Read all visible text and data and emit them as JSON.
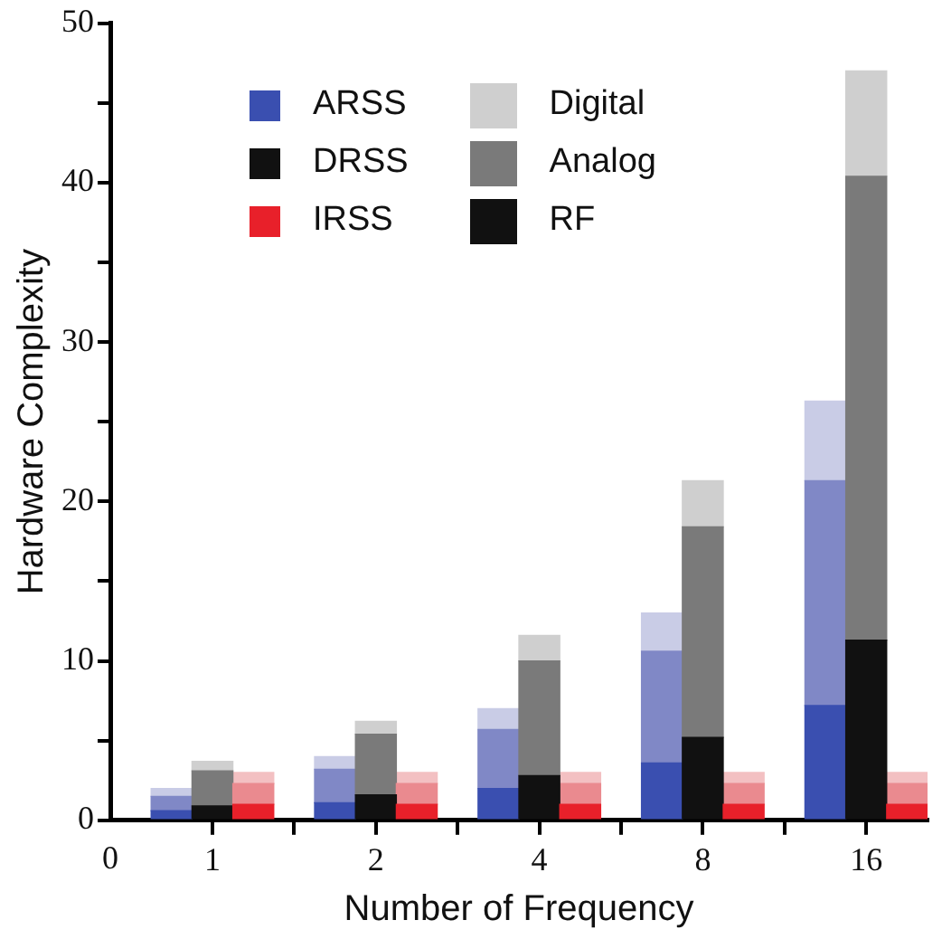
{
  "chart_data": {
    "type": "bar",
    "xlabel": "Number of Frequency",
    "ylabel": "Hardware Complexity",
    "categories": [
      null,
      null,
      "1",
      null,
      null,
      null,
      "2",
      null,
      null,
      null,
      "4",
      null,
      null,
      null,
      "8",
      null,
      null,
      null,
      "16",
      null
    ],
    "stacked": true,
    "legend": "top",
    "grid": false,
    "ylim": [
      0,
      50
    ],
    "yticks": [
      0,
      {
        "value": 5,
        "label": null
      },
      10,
      {
        "value": 15,
        "label": null
      },
      20,
      {
        "value": 25,
        "label": null
      },
      30,
      {
        "value": 35,
        "label": null
      },
      40,
      {
        "value": 45,
        "label": null
      },
      50
    ],
    "annotations": [
      "0",
      "ARSS",
      "DRSS",
      "IRSS"
    ],
    "series": [
      {
        "name": "RF",
        "color": "#111111",
        "colors": [
          null,
          "#3a4fb0",
          "#111111",
          "#e8202a",
          null,
          "#3a4fb0",
          "#111111",
          "#e8202a",
          null,
          "#3a4fb0",
          "#111111",
          "#e8202a",
          null,
          "#3a4fb0",
          "#111111",
          "#e8202a",
          null,
          "#3a4fb0",
          "#111111",
          "#e8202a"
        ],
        "values": [
          null,
          0.6,
          0.9,
          1.0,
          null,
          1.1,
          1.6,
          1.0,
          null,
          2.0,
          2.8,
          1.0,
          null,
          3.6,
          5.2,
          1.0,
          null,
          7.2,
          11.3,
          1.0
        ]
      },
      {
        "name": "Analog",
        "color": "#7a7a7a",
        "colors": [
          null,
          "#8088c6",
          "#7a7a7a",
          "#ea8a8f",
          null,
          "#8088c6",
          "#7a7a7a",
          "#ea8a8f",
          null,
          "#8088c6",
          "#7a7a7a",
          "#ea8a8f",
          null,
          "#8088c6",
          "#7a7a7a",
          "#ea8a8f",
          null,
          "#8088c6",
          "#7a7a7a",
          "#ea8a8f"
        ],
        "values": [
          null,
          0.9,
          2.2,
          1.3,
          null,
          2.1,
          3.8,
          1.3,
          null,
          3.7,
          7.2,
          1.3,
          null,
          7.0,
          13.2,
          1.3,
          null,
          14.1,
          29.1,
          1.3
        ]
      },
      {
        "name": "Digital",
        "color": "#cfcfcf",
        "colors": [
          null,
          "#c9cce6",
          "#cfcfcf",
          "#f3c0c2",
          null,
          "#c9cce6",
          "#cfcfcf",
          "#f3c0c2",
          null,
          "#c9cce6",
          "#cfcfcf",
          "#f3c0c2",
          null,
          "#c9cce6",
          "#cfcfcf",
          "#f3c0c2",
          null,
          "#c9cce6",
          "#cfcfcf",
          "#f3c0c2"
        ],
        "values": [
          null,
          0.5,
          0.6,
          0.7,
          null,
          0.8,
          0.8,
          0.7,
          null,
          1.3,
          1.6,
          0.7,
          null,
          2.4,
          2.9,
          0.7,
          null,
          5.0,
          6.6,
          0.7
        ]
      }
    ]
  }
}
